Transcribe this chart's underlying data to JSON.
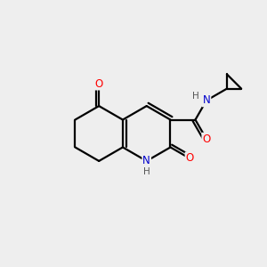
{
  "bg_color": "#eeeeee",
  "atom_colors": {
    "C": "#000000",
    "N": "#0000cc",
    "O": "#ff0000",
    "NH_color": "#0000cc",
    "H_color": "#888888"
  },
  "bond_color": "#000000",
  "bond_width": 1.6,
  "font_size_atom": 8.5,
  "font_size_H": 7.5
}
